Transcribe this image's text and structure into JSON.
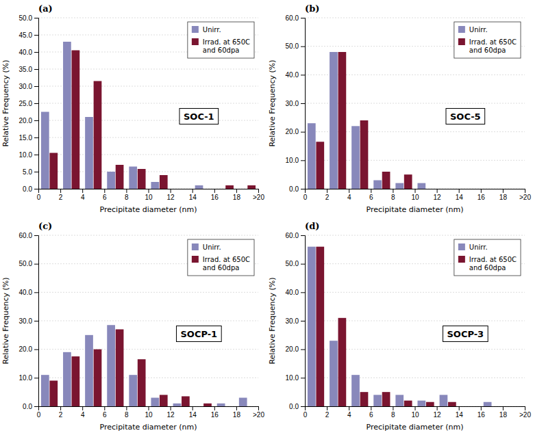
{
  "chart_data": [
    {
      "type": "bar",
      "title": "SOC-1",
      "annotations": [
        "(a)"
      ],
      "x": [
        1,
        3,
        5,
        7,
        9,
        11,
        13,
        15,
        17,
        19
      ],
      "xlim": [
        0,
        20
      ],
      "xticks": [
        0,
        2,
        4,
        6,
        8,
        10,
        12,
        14,
        16,
        18,
        {
          "value": 20,
          "label": ">20"
        }
      ],
      "ylim": [
        0,
        50.0
      ],
      "yticks": [
        {
          "value": 0,
          "label": "0.0"
        },
        {
          "value": 5,
          "label": "5.0"
        },
        {
          "value": 10,
          "label": "10.0"
        },
        {
          "value": 15,
          "label": "15.0"
        },
        {
          "value": 20,
          "label": "20.0"
        },
        {
          "value": 25,
          "label": "25.0"
        },
        {
          "value": 30,
          "label": "30.0"
        },
        {
          "value": 35,
          "label": "35.0"
        },
        {
          "value": 40,
          "label": "40.0"
        },
        {
          "value": 45,
          "label": "45.0"
        },
        {
          "value": 50,
          "label": "50.0"
        }
      ],
      "xlabel": "Precipitate diameter (nm)",
      "ylabel": "Relative Frequency (%)",
      "grid": true,
      "legend": "upper right",
      "series": [
        {
          "name": "Unirr.",
          "color": "#8888bb",
          "values": [
            22.5,
            43.0,
            21.0,
            5.0,
            6.5,
            2.0,
            0.0,
            1.0,
            0.0,
            0.0
          ]
        },
        {
          "name": "Irrad. at 650C\nand 60dpa",
          "color": "#7a1530",
          "values": [
            10.5,
            40.5,
            31.5,
            7.0,
            5.8,
            4.0,
            0.0,
            0.0,
            1.0,
            1.0
          ]
        }
      ]
    },
    {
      "type": "bar",
      "title": "SOC-5",
      "annotations": [
        "(b)"
      ],
      "x": [
        1,
        3,
        5,
        7,
        9,
        11,
        13,
        15,
        17,
        19
      ],
      "xlim": [
        0,
        20
      ],
      "xticks": [
        0,
        2,
        4,
        6,
        8,
        10,
        12,
        14,
        16,
        18,
        {
          "value": 20,
          "label": ">20"
        }
      ],
      "ylim": [
        0,
        60.0
      ],
      "yticks": [
        {
          "value": 0,
          "label": "0.0"
        },
        {
          "value": 10,
          "label": "10.0"
        },
        {
          "value": 20,
          "label": "20.0"
        },
        {
          "value": 30,
          "label": "30.0"
        },
        {
          "value": 40,
          "label": "40.0"
        },
        {
          "value": 50,
          "label": "50.0"
        },
        {
          "value": 60,
          "label": "60.0"
        }
      ],
      "xlabel": "Precipitate diameter (nm)",
      "ylabel": "Relative Frequency (%)",
      "grid": true,
      "legend": "upper right",
      "series": [
        {
          "name": "Unirr.",
          "color": "#8888bb",
          "values": [
            23.0,
            48.0,
            22.0,
            3.0,
            2.0,
            2.0,
            0.0,
            0.0,
            0.0,
            0.0
          ]
        },
        {
          "name": "Irrad. at 650C\nand 60dpa",
          "color": "#7a1530",
          "values": [
            16.5,
            48.0,
            24.0,
            6.0,
            5.0,
            0.0,
            0.0,
            0.0,
            0.0,
            0.0
          ]
        }
      ]
    },
    {
      "type": "bar",
      "title": "SOCP-1",
      "annotations": [
        "(c)"
      ],
      "x": [
        1,
        3,
        5,
        7,
        9,
        11,
        13,
        15,
        17,
        19
      ],
      "xlim": [
        0,
        20
      ],
      "xticks": [
        0,
        2,
        4,
        6,
        8,
        10,
        12,
        14,
        16,
        18,
        {
          "value": 20,
          "label": ">20"
        }
      ],
      "ylim": [
        0,
        60.0
      ],
      "yticks": [
        {
          "value": 0,
          "label": "0.0"
        },
        {
          "value": 10,
          "label": "10.0"
        },
        {
          "value": 20,
          "label": "20.0"
        },
        {
          "value": 30,
          "label": "30.0"
        },
        {
          "value": 40,
          "label": "40.0"
        },
        {
          "value": 50,
          "label": "50.0"
        },
        {
          "value": 60,
          "label": "60.0"
        }
      ],
      "xlabel": "Precipitate diameter (nm)",
      "ylabel": "Relative Frequency (%)",
      "grid": true,
      "legend": "upper right",
      "series": [
        {
          "name": "Unirr.",
          "color": "#8888bb",
          "values": [
            11.0,
            19.0,
            25.0,
            28.5,
            11.0,
            3.0,
            1.0,
            0.0,
            1.0,
            3.0
          ]
        },
        {
          "name": "Irrad. at 650C\nand 60dpa",
          "color": "#7a1530",
          "values": [
            9.0,
            17.5,
            20.0,
            27.0,
            16.5,
            4.0,
            3.5,
            1.0,
            0.0,
            0.0
          ]
        }
      ]
    },
    {
      "type": "bar",
      "title": "SOCP-3",
      "annotations": [
        "(d)"
      ],
      "x": [
        1,
        3,
        5,
        7,
        9,
        11,
        13,
        15,
        17,
        19
      ],
      "xlim": [
        0,
        20
      ],
      "xticks": [
        0,
        2,
        4,
        6,
        8,
        10,
        12,
        14,
        16,
        18,
        {
          "value": 20,
          "label": ">20"
        }
      ],
      "ylim": [
        0,
        60.0
      ],
      "yticks": [
        {
          "value": 0,
          "label": "0.0"
        },
        {
          "value": 10,
          "label": "10.0"
        },
        {
          "value": 20,
          "label": "20.0"
        },
        {
          "value": 30,
          "label": "30.0"
        },
        {
          "value": 40,
          "label": "40.0"
        },
        {
          "value": 50,
          "label": "50.0"
        },
        {
          "value": 60,
          "label": "60.0"
        }
      ],
      "xlabel": "Precipitate diameter (nm)",
      "ylabel": "Relative Frequency (%)",
      "grid": true,
      "legend": "upper right",
      "series": [
        {
          "name": "Unirr.",
          "color": "#8888bb",
          "values": [
            56.0,
            23.0,
            11.0,
            4.0,
            4.0,
            2.0,
            4.0,
            0.0,
            1.5,
            0.0
          ]
        },
        {
          "name": "Irrad. at 650C\nand 60dpa",
          "color": "#7a1530",
          "values": [
            56.0,
            31.0,
            5.0,
            5.0,
            2.0,
            1.5,
            1.5,
            0.0,
            0.0,
            0.0
          ]
        }
      ]
    }
  ]
}
